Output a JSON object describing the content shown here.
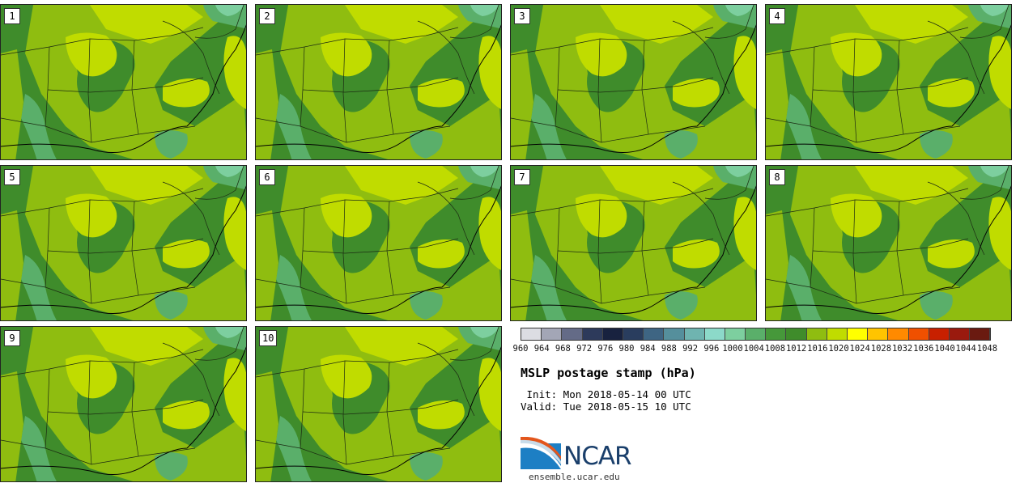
{
  "title": "MSLP postage stamp (hPa)",
  "init_line": " Init: Mon 2018-05-14 00 UTC",
  "valid_line": "Valid: Tue 2018-05-15 10 UTC",
  "site": "ensemble.ucar.edu",
  "logo_text": "NCAR",
  "members": [
    {
      "label": "1"
    },
    {
      "label": "2"
    },
    {
      "label": "3"
    },
    {
      "label": "4"
    },
    {
      "label": "5"
    },
    {
      "label": "6"
    },
    {
      "label": "7"
    },
    {
      "label": "8"
    },
    {
      "label": "9"
    },
    {
      "label": "10"
    }
  ],
  "colorbar": {
    "ticks": [
      "960",
      "964",
      "968",
      "972",
      "976",
      "980",
      "984",
      "988",
      "992",
      "996",
      "1000",
      "1004",
      "1008",
      "1012",
      "1016",
      "1020",
      "1024",
      "1028",
      "1032",
      "1036",
      "1040",
      "1044",
      "1048"
    ],
    "colors": [
      "#dcdde3",
      "#a3a6b6",
      "#646b87",
      "#2d3a5b",
      "#18223f",
      "#293d5e",
      "#3e6583",
      "#558f9c",
      "#6fb4b0",
      "#8cd9c9",
      "#7dcf9f",
      "#5aaf6a",
      "#46983a",
      "#3f8c2b",
      "#8fbd10",
      "#c0dc00",
      "#ffff00",
      "#ffc400",
      "#ff8a00",
      "#f05000",
      "#c82000",
      "#9a1a0e",
      "#6a1a10"
    ]
  },
  "map_colors": {
    "base": "#3f8c2b",
    "p1016": "#8fbd10",
    "p1020": "#c0dc00",
    "p1008": "#5aaf6a",
    "p1004": "#7dcf9f"
  }
}
